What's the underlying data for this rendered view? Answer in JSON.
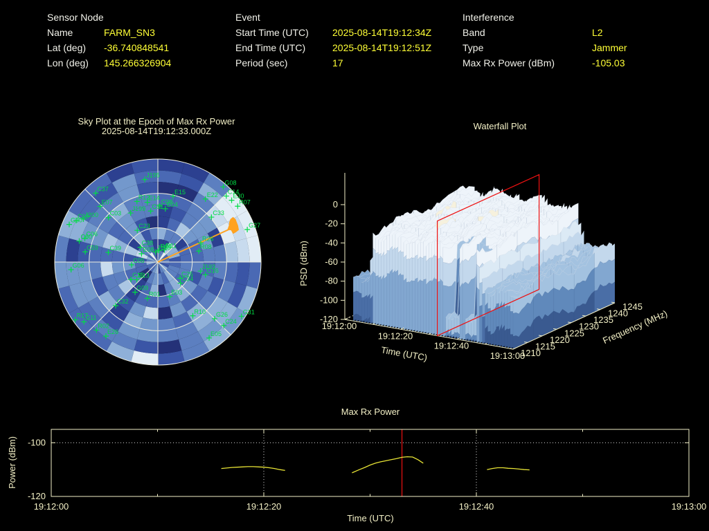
{
  "header": {
    "sensor_node": {
      "title": "Sensor Node",
      "rows": [
        {
          "label": "Name",
          "value": "FARM_SN3"
        },
        {
          "label": "Lat (deg)",
          "value": "-36.740848541"
        },
        {
          "label": "Lon (deg)",
          "value": "145.266326904"
        }
      ]
    },
    "event": {
      "title": "Event",
      "rows": [
        {
          "label": "Start Time (UTC)",
          "value": "2025-08-14T19:12:34Z"
        },
        {
          "label": "End Time (UTC)",
          "value": "2025-08-14T19:12:51Z"
        },
        {
          "label": "Period (sec)",
          "value": "17"
        }
      ]
    },
    "interference": {
      "title": "Interference",
      "rows": [
        {
          "label": "Band",
          "value": "L2"
        },
        {
          "label": "Type",
          "value": "Jammer"
        },
        {
          "label": "Max Rx Power (dBm)",
          "value": "-105.03"
        }
      ]
    }
  },
  "colors": {
    "background": "#000000",
    "label_text": "#f2f2ea",
    "value_text": "#ffff36",
    "plot_text": "#f3f0c6",
    "frame": "#f2efc8",
    "grid_white": "#efefe0",
    "satellite_green": "#00dd44",
    "jammer_orange": "#ffa21f",
    "epoch_red": "#ee1111",
    "series_yellow": "#e8e435",
    "dotted_white": "#d8d8d8"
  },
  "chart_data": [
    {
      "type": "heatmap",
      "id": "sky_plot",
      "title": "Sky Plot at the Epoch of Max Rx Power",
      "subtitle": "2025-08-14T19:12:33.000Z",
      "projection": "polar-sky",
      "elevation_rings_deg": [
        0,
        30,
        60
      ],
      "azimuth_spoke_step_deg": 45,
      "azimuth_bins": 24,
      "elevation_bins": 9,
      "seed": 7,
      "palette": [
        "#243178",
        "#2c4090",
        "#3a55a6",
        "#4a69b4",
        "#5c7fc0",
        "#7398cc",
        "#8fb0d8",
        "#abc6e3",
        "#c8dbee",
        "#e2edf6"
      ],
      "bright_sector": {
        "az_range": [
          38,
          84
        ],
        "el_range": [
          3,
          30
        ]
      },
      "jammer": {
        "azimuth_deg": 64,
        "elevation_deg": 17
      },
      "satellites": [
        {
          "id": "J195",
          "az": 351,
          "el": 17
        },
        {
          "id": "C37",
          "az": 318,
          "el": 9
        },
        {
          "id": "E07",
          "az": 314,
          "el": 20
        },
        {
          "id": "R12",
          "az": 341,
          "el": 34
        },
        {
          "id": "E14",
          "az": 350,
          "el": 37
        },
        {
          "id": "J199",
          "az": 331,
          "el": 41
        },
        {
          "id": "C01",
          "az": 352,
          "el": 45
        },
        {
          "id": "C08",
          "az": 2,
          "el": 41
        },
        {
          "id": "E04",
          "az": 8,
          "el": 43
        },
        {
          "id": "E15",
          "az": 13,
          "el": 31
        },
        {
          "id": "E22",
          "az": 37,
          "el": 21
        },
        {
          "id": "G08",
          "az": 41,
          "el": 3
        },
        {
          "id": "C14",
          "az": 46,
          "el": 7
        },
        {
          "id": "E30",
          "az": 50,
          "el": 6
        },
        {
          "id": "R07",
          "az": 55,
          "el": 5
        },
        {
          "id": "C33",
          "az": 50,
          "el": 29
        },
        {
          "id": "G27",
          "az": 70,
          "el": 7
        },
        {
          "id": "R26",
          "az": 66,
          "el": 49
        },
        {
          "id": "R08",
          "az": 75,
          "el": 53
        },
        {
          "id": "J193",
          "az": 102,
          "el": 52
        },
        {
          "id": "G16",
          "az": 105,
          "el": 47
        },
        {
          "id": "C25",
          "az": 126,
          "el": 66
        },
        {
          "id": "C34",
          "az": 133,
          "el": 63
        },
        {
          "id": "G31",
          "az": 123,
          "el": 3
        },
        {
          "id": "G26",
          "az": 135,
          "el": 20
        },
        {
          "id": "C24",
          "az": 134,
          "el": 10
        },
        {
          "id": "R10",
          "az": 147,
          "el": 34
        },
        {
          "id": "E05",
          "az": 146,
          "el": 10
        },
        {
          "id": "E03",
          "az": 161,
          "el": 58
        },
        {
          "id": "R01",
          "az": 196,
          "el": 57
        },
        {
          "id": "G09",
          "az": 217,
          "el": 57
        },
        {
          "id": "C32",
          "az": 224,
          "el": 37
        },
        {
          "id": "E26",
          "az": 215,
          "el": 11
        },
        {
          "id": "R02",
          "az": 222,
          "el": 10
        },
        {
          "id": "G11",
          "az": 231,
          "el": 7
        },
        {
          "id": "R17",
          "az": 235,
          "el": 2
        },
        {
          "id": "C15",
          "az": 237,
          "el": 62
        },
        {
          "id": "E13",
          "az": 230,
          "el": 66
        },
        {
          "id": "G06",
          "az": 265,
          "el": 14
        },
        {
          "id": "C39",
          "az": 281,
          "el": 46
        },
        {
          "id": "C05",
          "az": 264,
          "el": 67
        },
        {
          "id": "C59",
          "az": 278,
          "el": 26
        },
        {
          "id": "C60",
          "az": 285,
          "el": 19
        },
        {
          "id": "C06",
          "az": 288,
          "el": 23
        },
        {
          "id": "G30",
          "az": 293,
          "el": 6
        },
        {
          "id": "C09",
          "az": 297,
          "el": 10
        },
        {
          "id": "J200",
          "az": 300,
          "el": 15
        },
        {
          "id": "C03",
          "az": 312,
          "el": 32
        },
        {
          "id": "C23",
          "az": 327,
          "el": 57
        },
        {
          "id": "C38",
          "az": 310,
          "el": 70
        },
        {
          "id": "E08",
          "az": 297,
          "el": 74
        },
        {
          "id": "J196",
          "az": 348,
          "el": 81
        },
        {
          "id": "R04",
          "az": 5,
          "el": 80
        },
        {
          "id": "R11",
          "az": 28,
          "el": 78
        }
      ]
    },
    {
      "type": "surface3d",
      "id": "waterfall",
      "title": "Waterfall Plot",
      "xlabel": "Time (UTC)",
      "ylabel": "Frequency (MHz)",
      "zlabel": "PSD (dBm)",
      "x_ticks": [
        "19:12:00",
        "19:12:20",
        "19:12:40",
        "19:13:00"
      ],
      "x_range_sec": [
        0,
        60
      ],
      "y_ticks": [
        1210,
        1215,
        1220,
        1225,
        1230,
        1235,
        1240,
        1245
      ],
      "y_range_mhz": [
        1210,
        1245
      ],
      "z_ticks": [
        0,
        -20,
        -40,
        -60,
        -80,
        -100,
        -120
      ],
      "z_range_dbm": [
        -120,
        0
      ],
      "event_window_sec": [
        9,
        48
      ],
      "plateau_psd_dbm": -26,
      "noise_floor_psd_dbm": -77,
      "tail_psd_dbm": -63,
      "slice_marker": {
        "time_sec": 33
      },
      "seed": 11,
      "palette": [
        "#f6f1dd",
        "#eef4fa",
        "#dceaf5",
        "#c3d8ec",
        "#a3c2e0",
        "#82a7d0",
        "#6089bb",
        "#4a6ea6",
        "#3a5a90"
      ]
    },
    {
      "type": "line",
      "id": "max_rx_power",
      "title": "Max Rx Power",
      "xlabel": "Time (UTC)",
      "ylabel": "Power (dBm)",
      "x_ticks": [
        "19:12:00",
        "19:12:20",
        "19:12:40",
        "19:13:00"
      ],
      "x_range_sec": [
        0,
        60
      ],
      "ylim": [
        -120,
        -95
      ],
      "y_ticks": [
        -100,
        -120
      ],
      "reference_line_dbm": -100,
      "vlines_sec": [
        20,
        40
      ],
      "epoch_line_sec": 33,
      "segments": [
        [
          [
            16.0,
            -109.6
          ],
          [
            16.5,
            -109.4
          ],
          [
            17,
            -109.2
          ],
          [
            17.5,
            -109.1
          ],
          [
            18,
            -109.0
          ],
          [
            18.5,
            -108.9
          ],
          [
            19,
            -108.9
          ],
          [
            19.5,
            -109.0
          ],
          [
            20,
            -109.1
          ],
          [
            20.5,
            -109.3
          ],
          [
            21,
            -109.6
          ],
          [
            21.5,
            -110.0
          ],
          [
            22,
            -110.3
          ]
        ],
        [
          [
            28.3,
            -111.2
          ],
          [
            29,
            -110.0
          ],
          [
            29.5,
            -109.2
          ],
          [
            30,
            -108.3
          ],
          [
            30.5,
            -107.6
          ],
          [
            31,
            -107.1
          ],
          [
            31.5,
            -106.7
          ],
          [
            32,
            -106.3
          ],
          [
            32.5,
            -105.9
          ],
          [
            33,
            -105.4
          ],
          [
            33.5,
            -105.2
          ],
          [
            34,
            -105.3
          ],
          [
            34.5,
            -106.3
          ],
          [
            35,
            -107.6
          ]
        ],
        [
          [
            41,
            -110.0
          ],
          [
            41.5,
            -109.6
          ],
          [
            42,
            -109.3
          ],
          [
            42.5,
            -109.3
          ],
          [
            43,
            -109.5
          ],
          [
            43.5,
            -109.6
          ],
          [
            44,
            -109.8
          ],
          [
            44.5,
            -110.0
          ],
          [
            45,
            -110.1
          ]
        ]
      ]
    }
  ]
}
